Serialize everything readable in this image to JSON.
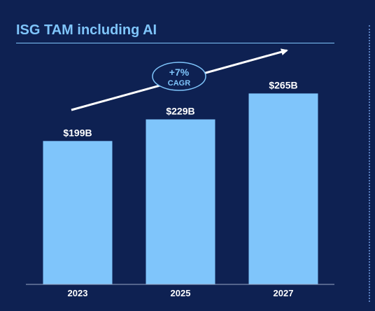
{
  "colors": {
    "background": "#0e2152",
    "bar": "#7fc5fb",
    "title": "#7fc5fb",
    "text": "#ffffff",
    "axis": "#9aa7c4"
  },
  "chart_data": {
    "type": "bar",
    "title": "ISG TAM including AI",
    "xlabel": "",
    "ylabel": "",
    "categories": [
      "2023",
      "2025",
      "2027"
    ],
    "values": [
      199,
      229,
      265
    ],
    "unit": "$B",
    "data_labels": [
      "$199B",
      "$229B",
      "$265B"
    ],
    "ylim": [
      0,
      280
    ],
    "grid": false,
    "legend": "none",
    "annotation": {
      "value": "+7%",
      "label": "CAGR",
      "shape": "arrow-with-ellipse",
      "direction": "up-right"
    }
  }
}
